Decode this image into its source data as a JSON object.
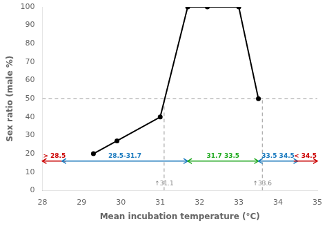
{
  "chart_data": {
    "type": "line",
    "xlabel": "Mean incubation temperature (°C)",
    "ylabel": "Sex ratio (male %)",
    "x": [
      29.3,
      29.9,
      31.0,
      31.7,
      32.2,
      33.0,
      33.5
    ],
    "values": [
      20,
      27,
      40,
      100,
      100,
      100,
      50
    ],
    "color": "black",
    "marker": "circle",
    "xlim": [
      28,
      35
    ],
    "ylim": [
      0,
      100
    ],
    "xticks": [
      28,
      29,
      30,
      31,
      32,
      33,
      34,
      35
    ],
    "yticks": [
      0,
      10,
      20,
      30,
      40,
      50,
      60,
      70,
      80,
      90,
      100
    ],
    "grid": false,
    "reference_lines": [
      {
        "y": 50,
        "color": "#999999",
        "line_style": "dashed"
      },
      {
        "x": 31.1,
        "y_range": [
          0,
          50
        ],
        "color": "#999999",
        "line_style": "dashed",
        "label": "↑31.1",
        "label_y": 2,
        "label_color": "#888888"
      },
      {
        "x": 33.6,
        "y_range": [
          0,
          50
        ],
        "color": "#999999",
        "line_style": "dashed",
        "label": "↑33.6",
        "label_y": 2,
        "label_color": "#888888"
      }
    ],
    "arrow_y": 16,
    "arrow_baseline_color": "#bbbbbb",
    "zones": [
      {
        "label": "> 28.5",
        "color": "#cc0000",
        "from": 28.6,
        "to": 28.0,
        "arrow_style": "->"
      },
      {
        "label": "28.5-31.7",
        "color": "#1a7abf",
        "from": 28.5,
        "to": 31.7,
        "arrow_style": "<->"
      },
      {
        "label": "31.7 33.5",
        "color": "#22aa22",
        "from": 31.7,
        "to": 33.5,
        "arrow_style": "<->"
      },
      {
        "label": "33.5 34.5",
        "color": "#1a7abf",
        "from": 33.5,
        "to": 34.5,
        "arrow_style": "<->"
      },
      {
        "label": "< 34.5",
        "color": "#cc0000",
        "from": 34.4,
        "to": 35.0,
        "arrow_style": "->"
      }
    ]
  }
}
